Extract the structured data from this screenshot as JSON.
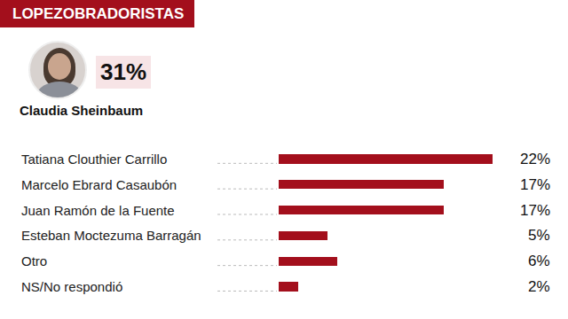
{
  "chart_data": {
    "type": "bar",
    "orientation": "horizontal",
    "title": "LOPEZOBRADORISTAS",
    "highlight": {
      "name": "Claudia Sheinbaum",
      "value": 31,
      "value_label": "31%"
    },
    "categories": [
      "Tatiana Clouthier Carrillo",
      "Marcelo Ebrard Casaubón",
      "Juan Ramón de la Fuente",
      "Esteban Moctezuma Barragán",
      "Otro",
      "NS/No respondió"
    ],
    "values": [
      22,
      17,
      17,
      5,
      6,
      2
    ],
    "value_labels": [
      "22%",
      "17%",
      "17%",
      "5%",
      "6%",
      "2%"
    ],
    "color": "#a30f1c",
    "xlim": [
      0,
      22
    ],
    "data_labels": true,
    "tick_labels": "y",
    "grid": false
  }
}
